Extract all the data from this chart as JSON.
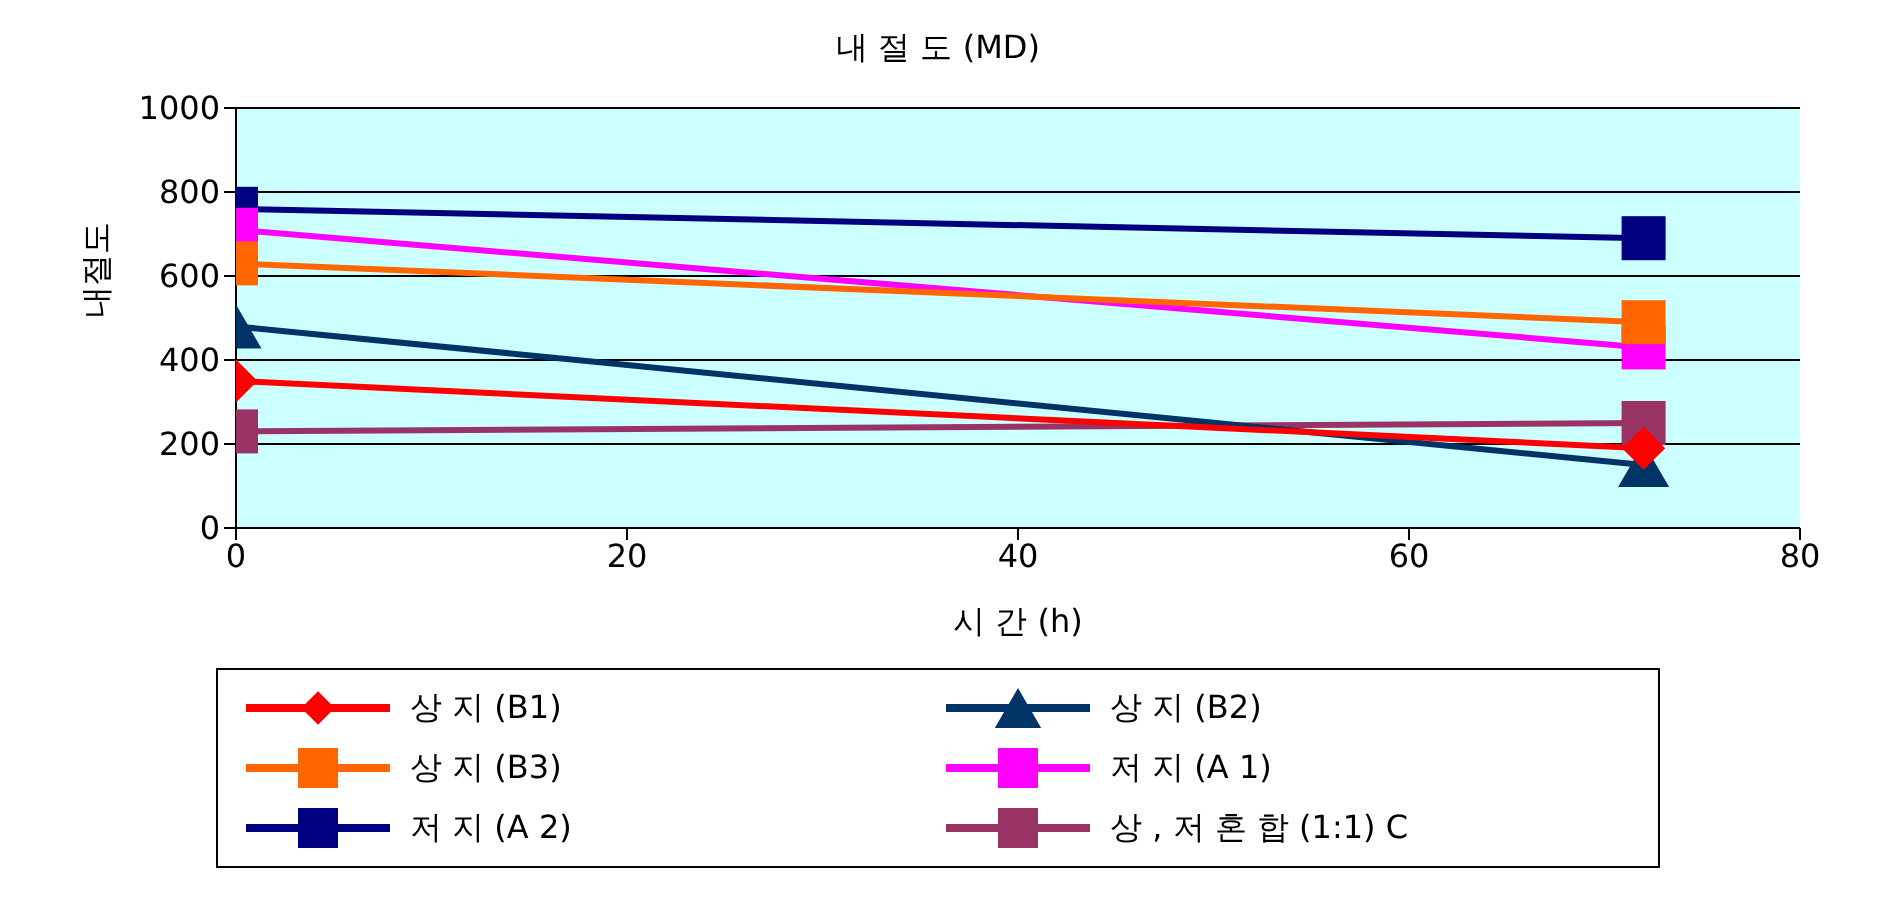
{
  "chart_data": {
    "type": "line",
    "title": "내 절 도 (MD)",
    "xlabel": "시 간 (h)",
    "ylabel": "내절도",
    "x": [
      0,
      72
    ],
    "xlim": [
      0,
      80
    ],
    "xticks": [
      0,
      20,
      40,
      60,
      80
    ],
    "ylim": [
      0,
      1000
    ],
    "yticks": [
      0,
      200,
      400,
      600,
      800,
      1000
    ],
    "grid": "y",
    "legend": "bottom",
    "series": [
      {
        "name": "상 지 (B1)",
        "color": "#ff0000",
        "marker": "diamond",
        "values": [
          350,
          190
        ]
      },
      {
        "name": "상 지 (B2)",
        "color": "#003366",
        "marker": "triangle",
        "values": [
          480,
          150
        ]
      },
      {
        "name": "상 지 (B3)",
        "color": "#ff6600",
        "marker": "square",
        "values": [
          630,
          490
        ]
      },
      {
        "name": "저 지 (A 1)",
        "color": "#ff00ff",
        "marker": "square",
        "values": [
          710,
          430
        ]
      },
      {
        "name": "저 지 (A 2)",
        "color": "#000080",
        "marker": "square",
        "values": [
          760,
          690
        ]
      },
      {
        "name": "상 , 저 혼 합 (1:1) C",
        "color": "#993366",
        "marker": "square",
        "values": [
          230,
          250
        ]
      }
    ]
  }
}
